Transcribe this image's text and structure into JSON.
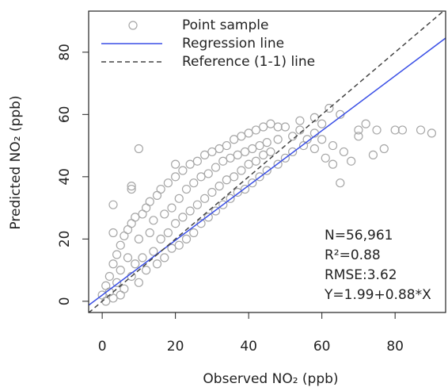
{
  "chart_data": {
    "type": "scatter",
    "xlabel": "Observed NO₂ (ppb)",
    "ylabel": "Predicted NO₂ (ppb)",
    "xlim": [
      -3.7,
      93.8
    ],
    "ylim": [
      -3.6,
      93.2
    ],
    "xticks": [
      0,
      20,
      40,
      60,
      80
    ],
    "yticks": [
      0,
      20,
      40,
      60,
      80
    ],
    "legend": "top-left",
    "series": [
      {
        "name": "Point sample",
        "type": "scatter",
        "color": "#a6a6a6",
        "x": [
          0,
          1,
          1,
          2,
          2,
          3,
          3,
          4,
          4,
          5,
          5,
          5,
          6,
          6,
          7,
          7,
          8,
          8,
          9,
          9,
          10,
          10,
          11,
          11,
          12,
          12,
          13,
          13,
          14,
          14,
          15,
          15,
          16,
          16,
          17,
          17,
          18,
          18,
          19,
          19,
          20,
          20,
          21,
          21,
          22,
          22,
          23,
          23,
          24,
          24,
          25,
          25,
          26,
          26,
          27,
          27,
          28,
          28,
          29,
          29,
          30,
          30,
          31,
          31,
          32,
          32,
          33,
          33,
          34,
          34,
          35,
          35,
          36,
          36,
          37,
          37,
          38,
          38,
          39,
          39,
          40,
          40,
          41,
          41,
          42,
          42,
          43,
          43,
          44,
          44,
          45,
          45,
          46,
          46,
          48,
          48,
          50,
          50,
          52,
          52,
          54,
          55,
          56,
          58,
          58,
          60,
          61,
          63,
          10,
          8,
          8,
          3,
          3,
          20,
          62,
          65,
          70,
          75,
          80,
          82,
          87,
          90,
          77,
          74,
          68,
          65,
          60,
          58,
          54,
          48,
          63,
          66,
          70,
          72
        ],
        "values": [
          2,
          5,
          0,
          8,
          3,
          12,
          1,
          15,
          6,
          18,
          2,
          10,
          21,
          4,
          14,
          23,
          25,
          8,
          12,
          27,
          20,
          6,
          28,
          14,
          30,
          10,
          22,
          32,
          16,
          26,
          34,
          12,
          20,
          36,
          28,
          14,
          38,
          22,
          30,
          17,
          40,
          25,
          33,
          18,
          42,
          27,
          36,
          20,
          44,
          29,
          38,
          22,
          45,
          31,
          40,
          25,
          47,
          33,
          41,
          27,
          48,
          35,
          43,
          29,
          49,
          37,
          45,
          31,
          50,
          39,
          46,
          33,
          52,
          40,
          47,
          35,
          53,
          42,
          48,
          36,
          54,
          44,
          49,
          38,
          55,
          45,
          50,
          40,
          56,
          47,
          51,
          42,
          57,
          48,
          52,
          44,
          56,
          46,
          53,
          48,
          55,
          50,
          52,
          54,
          49,
          52,
          46,
          44,
          49,
          37,
          36,
          31,
          22,
          44,
          62,
          60,
          55,
          55,
          55,
          55,
          55,
          54,
          49,
          47,
          45,
          38,
          57,
          59,
          58,
          56,
          50,
          48,
          53,
          57
        ]
      },
      {
        "name": "Regression line",
        "type": "line",
        "color": "#3a4fe6",
        "x": [
          -3.7,
          93.8
        ],
        "values": [
          -1.27,
          84.53
        ]
      },
      {
        "name": "Reference (1-1) line",
        "type": "line",
        "color": "#444444",
        "dash": "dashed",
        "x": [
          -3.7,
          93.8
        ],
        "values": [
          -3.7,
          93.8
        ]
      }
    ],
    "annotations": [
      "N=56,961",
      "R²=0.88",
      "RMSE:3.62",
      "Y=1.99+0.88*X"
    ]
  }
}
